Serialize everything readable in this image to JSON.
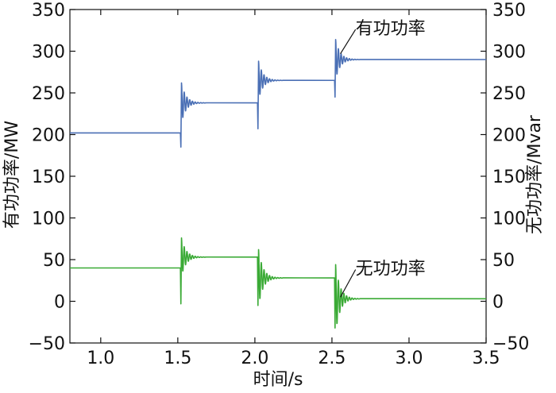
{
  "chart_data": {
    "type": "line",
    "xlabel": "时间/s",
    "ylabel_left": "有功功率/MW",
    "ylabel_right": "无功功率/Mvar",
    "xlim": [
      0.8,
      3.5
    ],
    "ylim": [
      -50,
      350
    ],
    "x_ticks": [
      1.0,
      1.5,
      2.0,
      2.5,
      3.0,
      3.5
    ],
    "x_tick_labels": [
      "1.0",
      "1.5",
      "2.0",
      "2.5",
      "3.0",
      "3.5"
    ],
    "y_ticks": [
      -50,
      0,
      50,
      100,
      150,
      200,
      250,
      300,
      350
    ],
    "y_tick_labels": [
      "−50",
      "0",
      "50",
      "100",
      "150",
      "200",
      "250",
      "300",
      "350"
    ],
    "grid": false,
    "series": [
      {
        "name": "有功功率",
        "axis": "left",
        "color": "#4a6fb5",
        "base": 202,
        "steps": [
          {
            "t": 1.52,
            "to": 238,
            "spike_high": 262,
            "spike_low": 185
          },
          {
            "t": 2.02,
            "to": 265,
            "spike_high": 288,
            "spike_low": 207
          },
          {
            "t": 2.52,
            "to": 290,
            "spike_high": 314,
            "spike_low": 245
          }
        ]
      },
      {
        "name": "无功功率",
        "axis": "right",
        "color": "#3aaa35",
        "base": 40,
        "steps": [
          {
            "t": 1.52,
            "to": 53,
            "spike_high": 76,
            "spike_low": -3
          },
          {
            "t": 2.02,
            "to": 28,
            "spike_high": 62,
            "spike_low": -5
          },
          {
            "t": 2.52,
            "to": 3,
            "spike_high": 44,
            "spike_low": -32
          }
        ]
      }
    ],
    "annotations": [
      {
        "text": "有功功率",
        "target_x": 2.555,
        "target_y": 297,
        "label_x": 2.88,
        "label_y": 328
      },
      {
        "text": "无功功率",
        "target_x": 2.555,
        "target_y": 5,
        "label_x": 2.88,
        "label_y": 40
      }
    ]
  }
}
